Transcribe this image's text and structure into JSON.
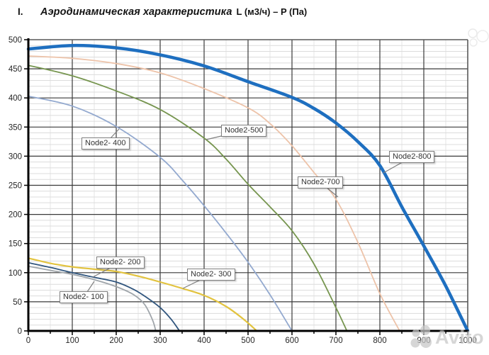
{
  "header": {
    "index": "I.",
    "title": "Аэродинамическая характеристика",
    "units": "L (м3/ч) – P (Па)"
  },
  "watermark": {
    "text": "Avito"
  },
  "chart_data": {
    "type": "line",
    "title": "Аэродинамическая характеристика L (м3/ч) – P (Па)",
    "xlabel": "L (м3/ч)",
    "ylabel": "P (Па)",
    "xlim": [
      0,
      1000
    ],
    "ylim": [
      0,
      500
    ],
    "x_ticks": [
      0,
      100,
      200,
      300,
      400,
      500,
      600,
      700,
      800,
      900,
      1000
    ],
    "y_ticks": [
      0,
      50,
      100,
      150,
      200,
      250,
      300,
      350,
      400,
      450,
      500
    ],
    "x_minor_step": 50,
    "y_minor_step": 10,
    "grid": true,
    "legend_position": "inline-callouts",
    "series": [
      {
        "name": "Node2- 100",
        "color": "#9FA5AA",
        "width": 1.8,
        "points": [
          [
            0,
            111
          ],
          [
            50,
            104
          ],
          [
            100,
            97
          ],
          [
            150,
            88
          ],
          [
            200,
            76
          ],
          [
            240,
            62
          ],
          [
            265,
            45
          ],
          [
            283,
            18
          ],
          [
            290,
            0
          ]
        ]
      },
      {
        "name": "Node2- 200",
        "color": "#31567E",
        "width": 1.8,
        "points": [
          [
            0,
            117
          ],
          [
            50,
            109
          ],
          [
            100,
            100
          ],
          [
            150,
            92
          ],
          [
            200,
            84
          ],
          [
            240,
            71
          ],
          [
            270,
            57
          ],
          [
            300,
            40
          ],
          [
            325,
            20
          ],
          [
            344,
            0
          ]
        ]
      },
      {
        "name": "Node2- 300",
        "color": "#E2C33F",
        "width": 2.2,
        "points": [
          [
            0,
            125
          ],
          [
            50,
            116
          ],
          [
            100,
            110
          ],
          [
            150,
            106
          ],
          [
            200,
            102
          ],
          [
            250,
            94
          ],
          [
            300,
            84
          ],
          [
            350,
            73
          ],
          [
            400,
            61
          ],
          [
            450,
            42
          ],
          [
            490,
            20
          ],
          [
            520,
            0
          ]
        ]
      },
      {
        "name": "Node2- 400",
        "color": "#93A9CF",
        "width": 1.8,
        "points": [
          [
            0,
            403
          ],
          [
            100,
            386
          ],
          [
            200,
            351
          ],
          [
            300,
            298
          ],
          [
            350,
            259
          ],
          [
            400,
            215
          ],
          [
            450,
            168
          ],
          [
            500,
            118
          ],
          [
            550,
            62
          ],
          [
            600,
            0
          ]
        ]
      },
      {
        "name": "Node2-500",
        "color": "#76954F",
        "width": 1.8,
        "points": [
          [
            0,
            456
          ],
          [
            100,
            438
          ],
          [
            200,
            412
          ],
          [
            300,
            380
          ],
          [
            400,
            331
          ],
          [
            450,
            295
          ],
          [
            500,
            252
          ],
          [
            550,
            213
          ],
          [
            600,
            172
          ],
          [
            650,
            115
          ],
          [
            700,
            40
          ],
          [
            725,
            0
          ]
        ]
      },
      {
        "name": "Node2-700",
        "color": "#EDC3A9",
        "width": 1.8,
        "points": [
          [
            0,
            472
          ],
          [
            100,
            468
          ],
          [
            200,
            459
          ],
          [
            300,
            443
          ],
          [
            400,
            416
          ],
          [
            500,
            383
          ],
          [
            550,
            356
          ],
          [
            600,
            318
          ],
          [
            650,
            272
          ],
          [
            700,
            226
          ],
          [
            750,
            152
          ],
          [
            800,
            64
          ],
          [
            845,
            0
          ]
        ]
      },
      {
        "name": "Node2-800",
        "color": "#1E6FC0",
        "width": 4.5,
        "points": [
          [
            0,
            484
          ],
          [
            100,
            490
          ],
          [
            200,
            486
          ],
          [
            300,
            474
          ],
          [
            400,
            455
          ],
          [
            500,
            428
          ],
          [
            600,
            401
          ],
          [
            650,
            382
          ],
          [
            700,
            357
          ],
          [
            750,
            325
          ],
          [
            800,
            284
          ],
          [
            850,
            213
          ],
          [
            900,
            146
          ],
          [
            950,
            77
          ],
          [
            1000,
            0
          ]
        ]
      }
    ],
    "annotations": [
      {
        "label": "Node2- 400",
        "box_x": 115,
        "box_y": 194,
        "tip_x": 168,
        "tip_y": 182
      },
      {
        "label": "Node2-500",
        "box_x": 312,
        "box_y": 176,
        "tip_x": 291,
        "tip_y": 197
      },
      {
        "label": "Node2-800",
        "box_x": 549,
        "box_y": 213,
        "tip_x": 541,
        "tip_y": 244
      },
      {
        "label": "Node2-700",
        "box_x": 420,
        "box_y": 249,
        "tip_x": 477,
        "tip_y": 278
      },
      {
        "label": "Node2- 200",
        "box_x": 136,
        "box_y": 362,
        "tip_x": 131,
        "tip_y": 391
      },
      {
        "label": "Node2- 300",
        "box_x": 264,
        "box_y": 379,
        "tip_x": 258,
        "tip_y": 407
      },
      {
        "label": "Node2- 100",
        "box_x": 84,
        "box_y": 411,
        "tip_x": 133,
        "tip_y": 397
      }
    ],
    "colors": {
      "major_grid": "#3a3a3a",
      "minor_grid_h": "#dcdcdc",
      "minor_grid_v": "#e6e6e6",
      "axis": "#000000",
      "border": "#595959",
      "tick_label": "#262626"
    }
  }
}
